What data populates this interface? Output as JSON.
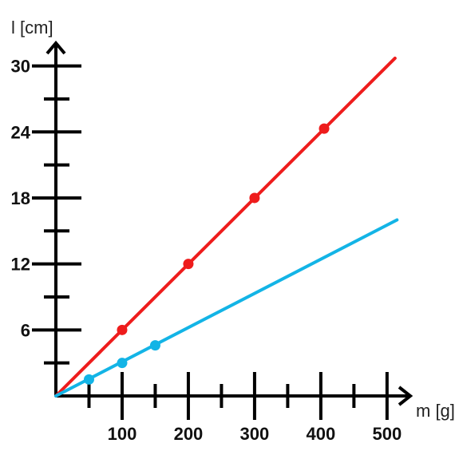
{
  "chart_data": {
    "type": "line",
    "xlabel": "m [g]",
    "ylabel": "l [cm]",
    "xlim": [
      0,
      500
    ],
    "ylim": [
      0,
      30
    ],
    "x_ticks": [
      100,
      200,
      300,
      400,
      500
    ],
    "x_minor_ticks": [
      50,
      150,
      250,
      350,
      450
    ],
    "y_ticks": [
      6,
      12,
      18,
      24,
      30
    ],
    "y_minor_ticks": [
      3,
      9,
      15,
      21,
      27
    ],
    "grid": false,
    "series": [
      {
        "color": "#ee1c1c",
        "line": {
          "x": [
            0,
            512
          ],
          "y": [
            0,
            30.7
          ]
        },
        "points": {
          "x": [
            100,
            200,
            300,
            405
          ],
          "y": [
            6,
            12,
            18,
            24.3
          ]
        }
      },
      {
        "color": "#13b4e6",
        "line": {
          "x": [
            0,
            515
          ],
          "y": [
            0,
            16.0
          ]
        },
        "points": {
          "x": [
            50,
            100,
            150
          ],
          "y": [
            1.5,
            3.0,
            4.6
          ]
        }
      }
    ]
  }
}
